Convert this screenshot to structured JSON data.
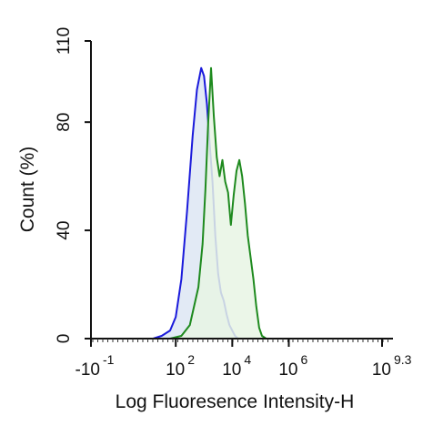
{
  "chart_data": {
    "type": "area",
    "title": "",
    "xlabel": "Log Fluoresence Intensity-H",
    "ylabel": "Count  (%)",
    "xlim": [
      -1,
      9.3
    ],
    "ylim": [
      0,
      110
    ],
    "grid": false,
    "x_scale": "logicle",
    "y_ticks": [
      {
        "value": 0,
        "label": "0"
      },
      {
        "value": 40,
        "label": "40"
      },
      {
        "value": 80,
        "label": "80"
      },
      {
        "value": 110,
        "label": "110"
      }
    ],
    "x_ticks": [
      {
        "value": -1,
        "base": "-10",
        "exp": "-1"
      },
      {
        "value": 2,
        "base": "10",
        "exp": "2"
      },
      {
        "value": 4,
        "base": "10",
        "exp": "4"
      },
      {
        "value": 6,
        "base": "10",
        "exp": "6"
      },
      {
        "value": 9.3,
        "base": "10",
        "exp": "9.3"
      }
    ],
    "series": [
      {
        "color": "#1a1adb",
        "fill": "#dde6f3",
        "points": [
          [
            1.2,
            0
          ],
          [
            1.5,
            1
          ],
          [
            1.8,
            3
          ],
          [
            2.0,
            8
          ],
          [
            2.2,
            22
          ],
          [
            2.4,
            47
          ],
          [
            2.6,
            75
          ],
          [
            2.75,
            92
          ],
          [
            2.9,
            100
          ],
          [
            3.0,
            97
          ],
          [
            3.1,
            87
          ],
          [
            3.2,
            72
          ],
          [
            3.3,
            58
          ],
          [
            3.4,
            38
          ],
          [
            3.5,
            24
          ],
          [
            3.6,
            17
          ],
          [
            3.7,
            14
          ],
          [
            3.8,
            9
          ],
          [
            3.9,
            5
          ],
          [
            4.0,
            3
          ],
          [
            4.1,
            1
          ],
          [
            4.2,
            0
          ]
        ]
      },
      {
        "color": "#1e8a1e",
        "fill": "#e8f4e4",
        "points": [
          [
            1.8,
            0
          ],
          [
            2.2,
            1
          ],
          [
            2.5,
            5
          ],
          [
            2.8,
            19
          ],
          [
            2.95,
            35
          ],
          [
            3.05,
            55
          ],
          [
            3.15,
            80
          ],
          [
            3.25,
            100
          ],
          [
            3.35,
            82
          ],
          [
            3.45,
            67
          ],
          [
            3.55,
            60
          ],
          [
            3.65,
            66
          ],
          [
            3.75,
            58
          ],
          [
            3.85,
            54
          ],
          [
            3.95,
            42
          ],
          [
            4.05,
            53
          ],
          [
            4.15,
            62
          ],
          [
            4.25,
            66
          ],
          [
            4.35,
            60
          ],
          [
            4.45,
            50
          ],
          [
            4.55,
            38
          ],
          [
            4.65,
            30
          ],
          [
            4.75,
            22
          ],
          [
            4.85,
            12
          ],
          [
            4.95,
            4
          ],
          [
            5.05,
            1
          ],
          [
            5.2,
            0
          ]
        ]
      }
    ]
  }
}
